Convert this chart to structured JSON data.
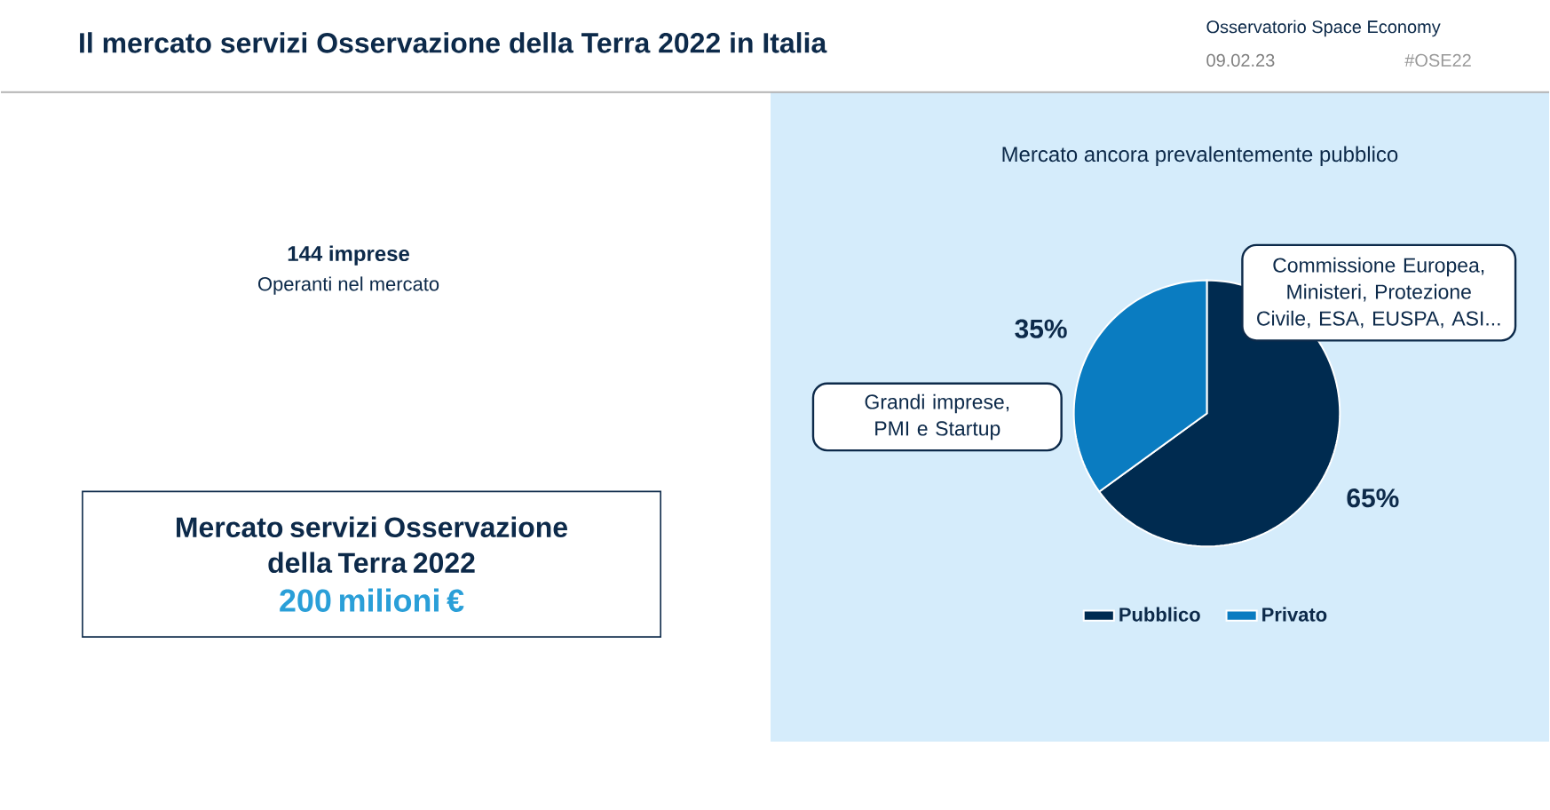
{
  "chart_data": {
    "type": "pie",
    "title": "Il mercato servizi Osservazione della Terra 2022 in Italia",
    "subtitle": "Mercato ancora prevalentemente pubblico",
    "categories": [
      "Pubblico",
      "Privato"
    ],
    "values": [
      65,
      35
    ],
    "colors": [
      "#002b50",
      "#0a7cc1"
    ],
    "value_labels": [
      "65%",
      "35%"
    ],
    "legend": "bottom",
    "annotations": [
      "Osservatorio Space Economy",
      "09.02.23",
      "#OSE22",
      "144 imprese",
      "Operanti nel mercato",
      "Mercato servizi Osservazione della Terra 2022",
      "200 milioni €",
      "Commissione Europea, Ministeri, Protezione Civile, ESA, EUSPA, ASI...",
      "Grandi imprese, PMI e Startup"
    ]
  }
}
